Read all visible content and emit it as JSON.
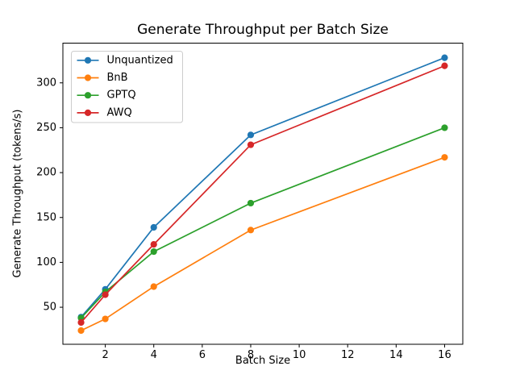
{
  "figure": {
    "title": "Generate Throughput per Batch Size",
    "xlabel": "Batch Size",
    "ylabel": "Generate Throughput (tokens/s)"
  },
  "chart_data": {
    "type": "line",
    "title": "Generate Throughput per Batch Size",
    "xlabel": "Batch Size",
    "ylabel": "Generate Throughput (tokens/s)",
    "x": [
      1,
      2,
      4,
      8,
      16
    ],
    "series": [
      {
        "name": "Unquantized",
        "color": "#1f77b4",
        "values": [
          39,
          70,
          139,
          242,
          328
        ]
      },
      {
        "name": "BnB",
        "color": "#ff7f0e",
        "values": [
          24,
          37,
          73,
          136,
          217
        ]
      },
      {
        "name": "GPTQ",
        "color": "#2ca02c",
        "values": [
          38,
          67,
          112,
          166,
          250
        ]
      },
      {
        "name": "AWQ",
        "color": "#d62728",
        "values": [
          33,
          64,
          120,
          231,
          319
        ]
      }
    ],
    "x_ticks": [
      2,
      4,
      6,
      8,
      10,
      12,
      14,
      16
    ],
    "y_ticks": [
      50,
      100,
      150,
      200,
      250,
      300
    ],
    "xlim": [
      0.25,
      16.75
    ],
    "ylim": [
      8.75,
      344.25
    ],
    "grid": false,
    "marker": "o",
    "legend_position": "upper left",
    "legend_border_color": "#cccccc",
    "axis_color": "#000000",
    "background_color": "#ffffff"
  }
}
